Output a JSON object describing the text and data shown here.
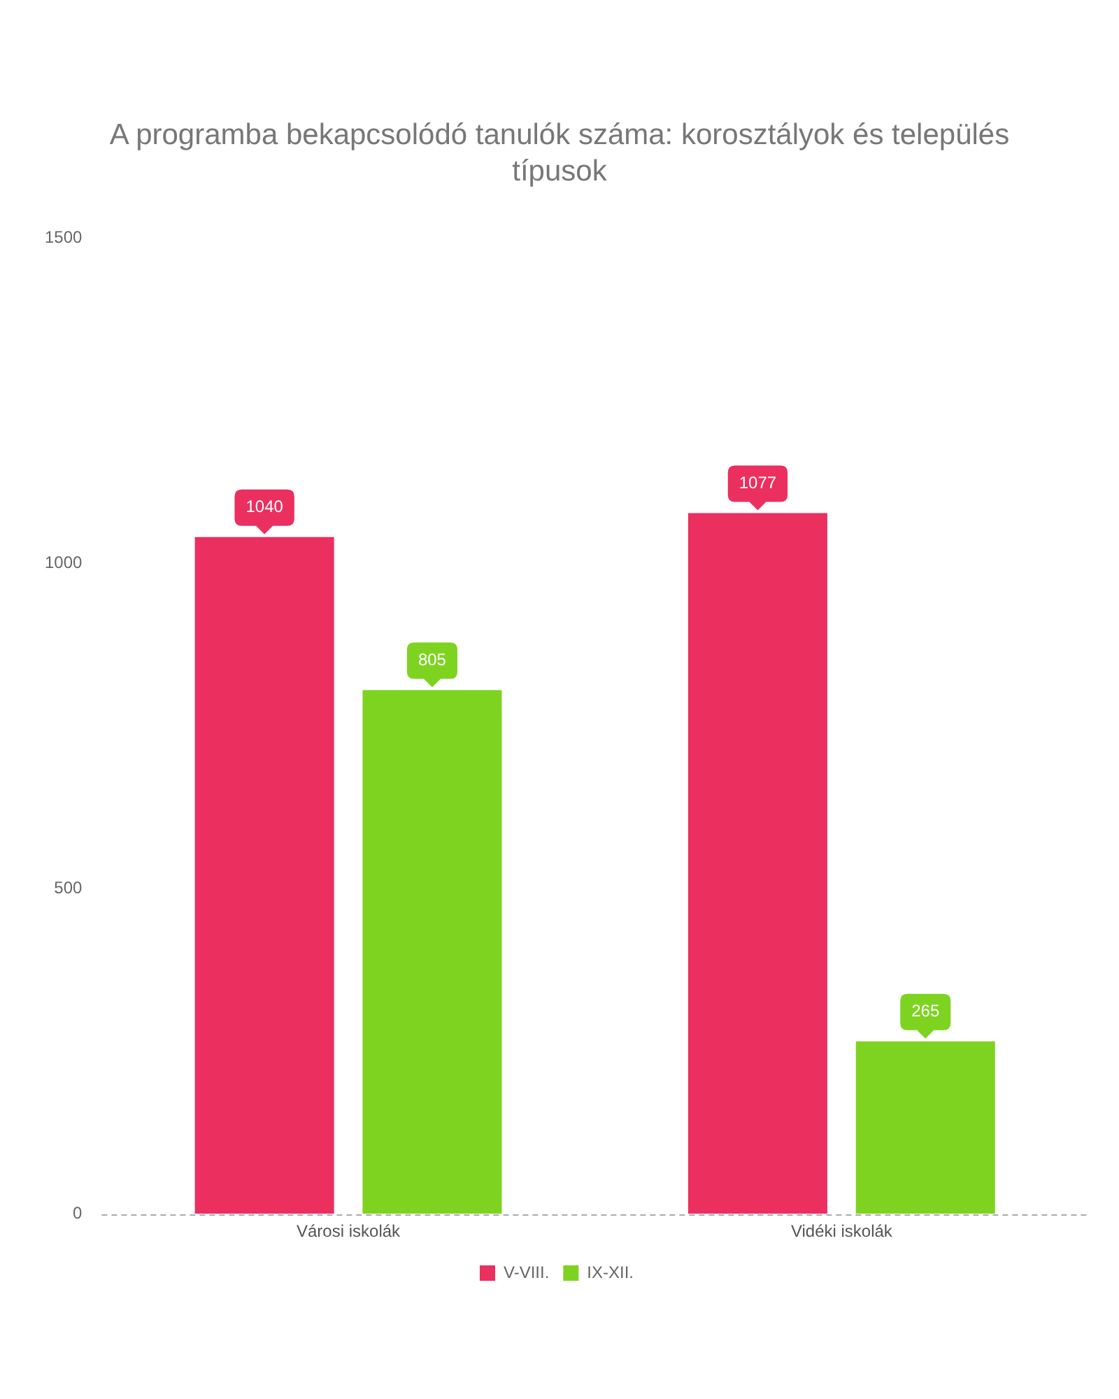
{
  "chart_data": {
    "type": "bar",
    "title": "A programba bekapcsolódó tanulók száma: korosztályok és település típusok",
    "categories": [
      "Városi iskolák",
      "Vidéki iskolák"
    ],
    "series": [
      {
        "name": "V-VIII.",
        "color": "#eb2f5f",
        "values": [
          1040,
          1077
        ]
      },
      {
        "name": "IX-XII.",
        "color": "#7ed321",
        "values": [
          805,
          265
        ]
      }
    ],
    "ylim": [
      0,
      1500
    ],
    "yticks": [
      0,
      500,
      1000,
      1500
    ],
    "grid": false,
    "legend": "bottom",
    "data_labels": true
  }
}
